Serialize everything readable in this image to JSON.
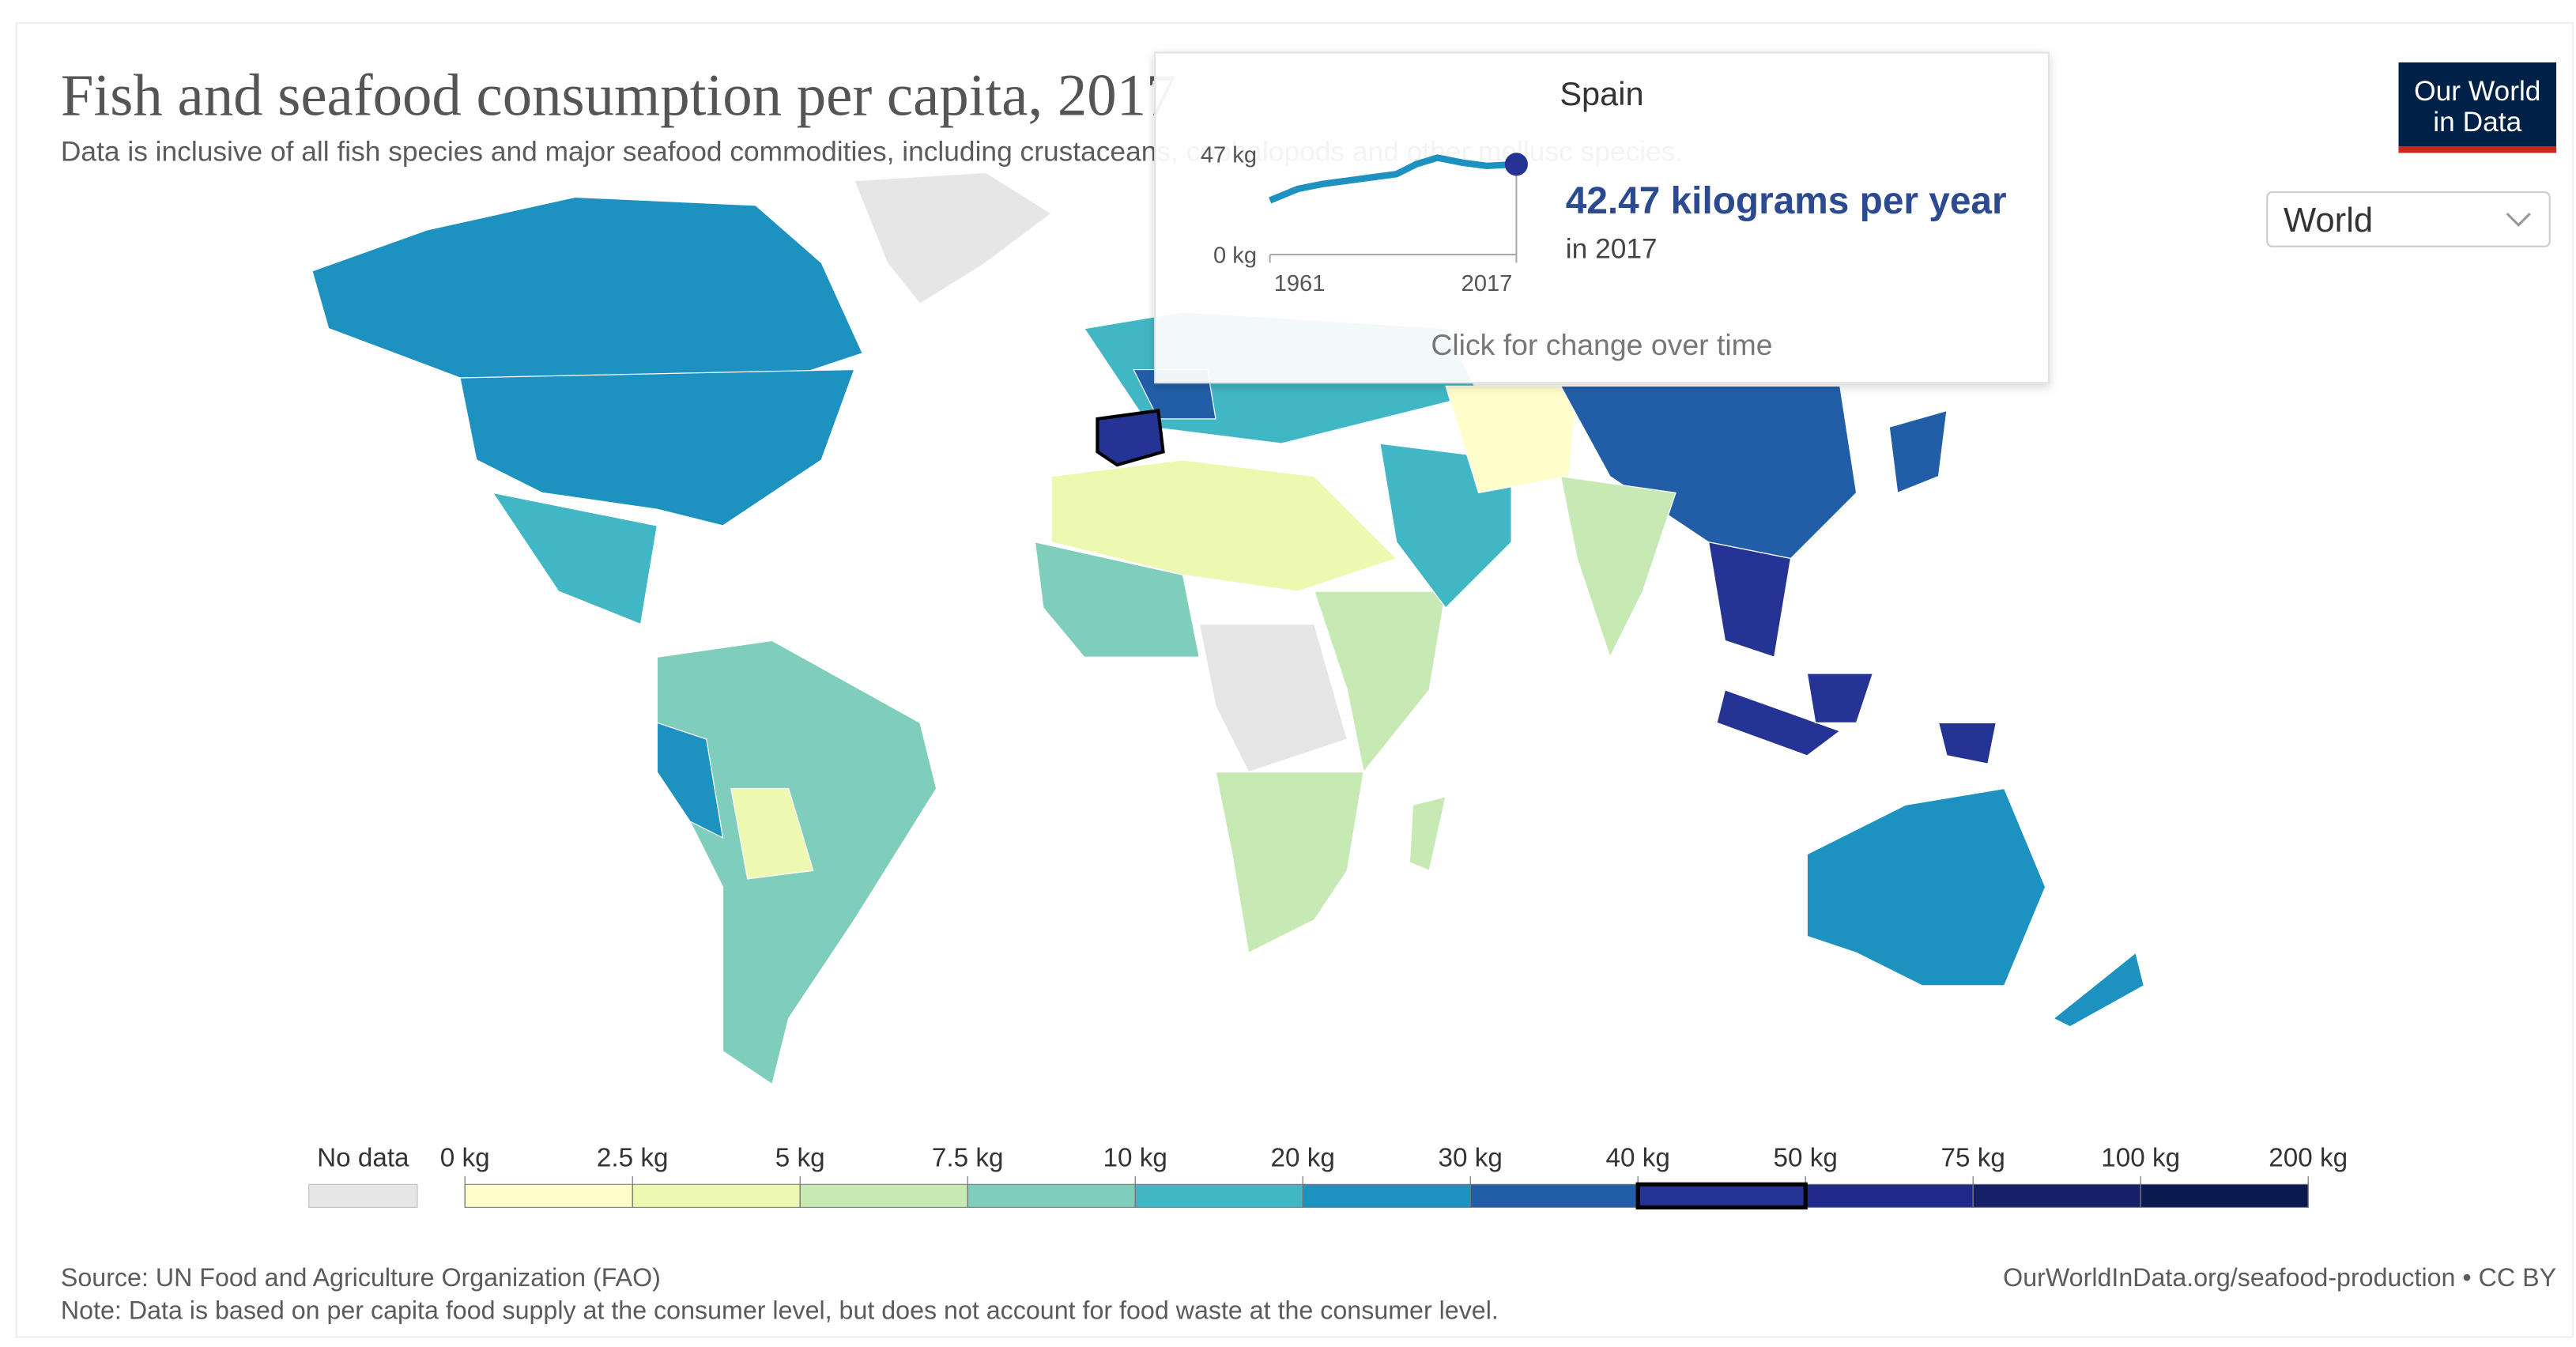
{
  "header": {
    "title": "Fish and seafood consumption per capita, 2017",
    "subtitle": "Data is inclusive of all fish species and major seafood commodities, including crustaceans, cephalopods and other mollusc species."
  },
  "logo": {
    "line1": "Our World",
    "line2": "in Data"
  },
  "region_select": "World",
  "tooltip": {
    "country": "Spain",
    "axis_top": "47 kg",
    "axis_bottom": "0 kg",
    "start_year": "1961",
    "end_year": "2017",
    "value": 42.47,
    "value_label": "42.47 kilograms per year",
    "year_label": "in 2017",
    "hint": "Click for change over time"
  },
  "legend": {
    "no_data": "No data",
    "no_data_color": "#e6e6e6",
    "ticks": [
      {
        "value": 0,
        "label": "0 kg"
      },
      {
        "value": 2.5,
        "label": "2.5 kg"
      },
      {
        "value": 5,
        "label": "5 kg"
      },
      {
        "value": 7.5,
        "label": "7.5 kg"
      },
      {
        "value": 10,
        "label": "10 kg"
      },
      {
        "value": 20,
        "label": "20 kg"
      },
      {
        "value": 30,
        "label": "30 kg"
      },
      {
        "value": 40,
        "label": "40 kg"
      },
      {
        "value": 50,
        "label": "50 kg"
      },
      {
        "value": 75,
        "label": "75 kg"
      },
      {
        "value": 100,
        "label": "100 kg"
      },
      {
        "value": 200,
        "label": "200 kg"
      }
    ],
    "colors": [
      "#ffffcc",
      "#edf8b1",
      "#c7e9b4",
      "#7fcdbb",
      "#41b6c4",
      "#1d91c0",
      "#225ea8",
      "#253494",
      "#1f2a8a",
      "#152068",
      "#0c1a52"
    ]
  },
  "footer": {
    "source": "Source: UN Food and Agriculture Organization (FAO)",
    "note": "Note: Data is based on per capita food supply at the consumer level, but does not account for food waste at the consumer level.",
    "url": "OurWorldInData.org/seafood-production • CC BY"
  }
}
